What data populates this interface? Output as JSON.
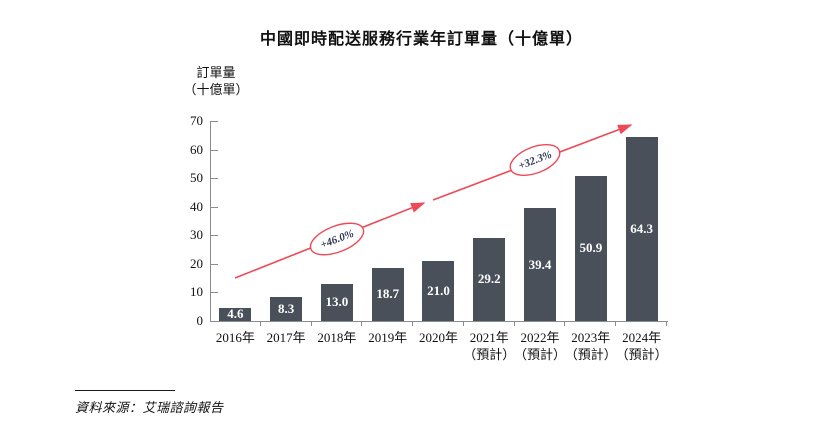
{
  "title": "中國即時配送服務行業年訂單量（十億單）",
  "y_axis": {
    "unit_line1": "訂單量",
    "unit_line2": "（十億單）"
  },
  "chart_data": {
    "type": "bar",
    "title": "中國即時配送服務行業年訂單量（十億單）",
    "ylabel": "訂單量（十億單）",
    "ylim": [
      0,
      70
    ],
    "yticks": [
      0,
      10,
      20,
      30,
      40,
      50,
      60,
      70
    ],
    "grid": "off",
    "categories": [
      "2016年",
      "2017年",
      "2018年",
      "2019年",
      "2020年",
      "2021年",
      "2022年",
      "2023年",
      "2024年"
    ],
    "category_notes": [
      "",
      "",
      "",
      "",
      "",
      "（預計）",
      "（預計）",
      "（預計）",
      "（預計）"
    ],
    "values": [
      4.6,
      8.3,
      13.0,
      18.7,
      21.0,
      29.2,
      39.4,
      50.9,
      64.3
    ],
    "value_labels": [
      "4.6",
      "8.3",
      "13.0",
      "18.7",
      "21.0",
      "29.2",
      "39.4",
      "50.9",
      "64.3"
    ],
    "bar_color": "#49505A",
    "arrow_color": "#EE4956",
    "annotations": [
      {
        "label": "+46.0%"
      },
      {
        "label": "+32.3%"
      }
    ]
  },
  "source": "資料來源：艾瑞諮詢報告"
}
